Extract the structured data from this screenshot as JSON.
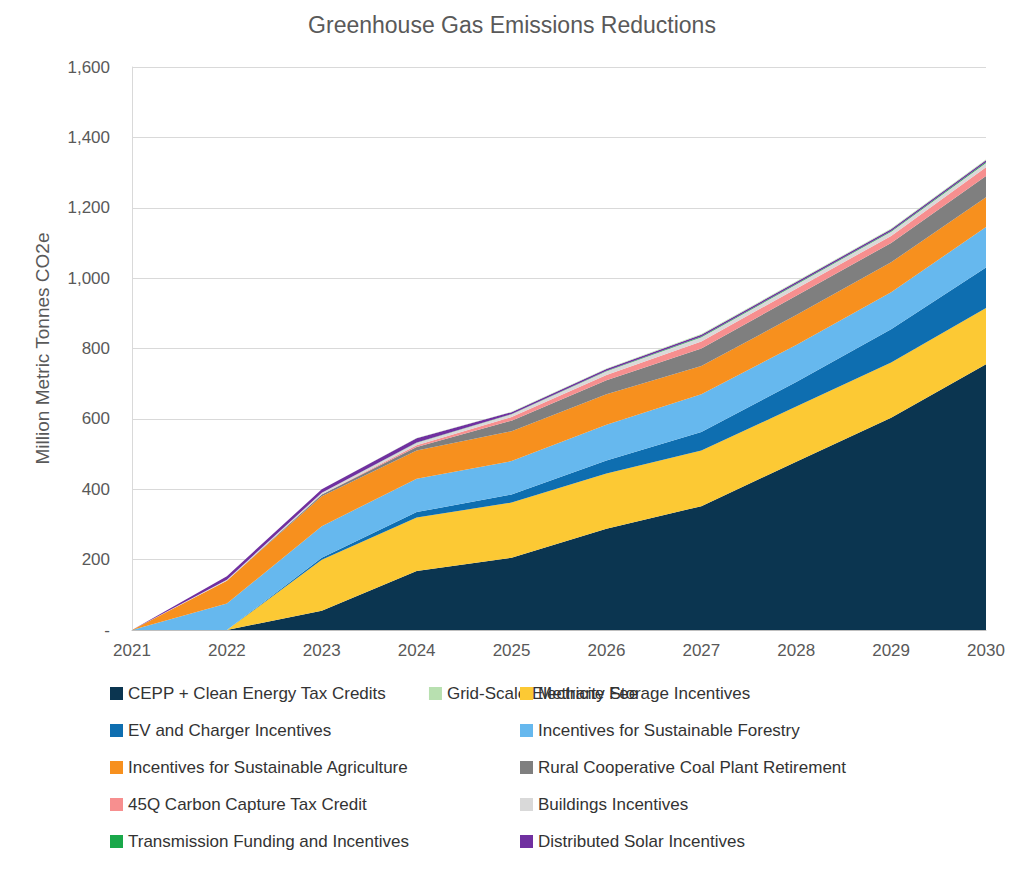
{
  "chart_data": {
    "type": "area",
    "title": "Greenhouse Gas Emissions Reductions",
    "y_label": "Million Metric Tonnes CO2e",
    "categories": [
      "2021",
      "2022",
      "2023",
      "2024",
      "2025",
      "2026",
      "2027",
      "2028",
      "2029",
      "2030"
    ],
    "stacked": true,
    "grid": true,
    "legend": "bottom",
    "ylim": [
      0,
      1600
    ],
    "yticks": [
      {
        "value": 0,
        "label": "-"
      },
      200,
      400,
      600,
      800,
      {
        "value": 1000,
        "label": "1,000"
      },
      {
        "value": 1200,
        "label": "1,200"
      },
      {
        "value": 1400,
        "label": "1,400"
      },
      {
        "value": 1600,
        "label": "1,600"
      }
    ],
    "series": [
      {
        "name": "CEPP + Clean Energy Tax Credits",
        "color": "#0b3550",
        "values": [
          0,
          0,
          55,
          168,
          205,
          288,
          352,
          478,
          603,
          755
        ]
      },
      {
        "name": "Methane Fee",
        "color": "#fcc934",
        "values": [
          0,
          0,
          145,
          152,
          157,
          157,
          158,
          157,
          157,
          160
        ]
      },
      {
        "name": "EV and Charger Incentives",
        "color": "#0e6eb0",
        "values": [
          0,
          0,
          5,
          15,
          23,
          37,
          53,
          70,
          95,
          115
        ]
      },
      {
        "name": "Incentives for Sustainable Forestry",
        "color": "#66b8ee",
        "values": [
          0,
          75,
          90,
          95,
          95,
          101,
          107,
          105,
          105,
          115
        ]
      },
      {
        "name": "Incentives for Sustainable Agriculture",
        "color": "#f7901e",
        "values": [
          0,
          65,
          85,
          80,
          85,
          87,
          80,
          85,
          85,
          85
        ]
      },
      {
        "name": "Rural Cooperative Coal Plant Retirement",
        "color": "#7f7f7f",
        "values": [
          0,
          0,
          5,
          10,
          30,
          40,
          50,
          55,
          55,
          60
        ]
      },
      {
        "name": "45Q Carbon Capture Tax Credit",
        "color": "#f78f8f",
        "values": [
          0,
          0,
          0,
          5,
          10,
          15,
          20,
          20,
          20,
          25
        ]
      },
      {
        "name": "Buildings Incentives",
        "color": "#d9d9d9",
        "values": [
          0,
          3,
          5,
          7,
          8,
          10,
          12,
          12,
          12,
          12
        ]
      },
      {
        "name": "Transmission Funding and Incentives",
        "color": "#1aa84a",
        "values": [
          0,
          0,
          0,
          1,
          1,
          2,
          2,
          2,
          2,
          3
        ]
      },
      {
        "name": "Distributed Solar Incentives",
        "color": "#7030a0",
        "values": [
          0,
          10,
          10,
          12,
          5,
          5,
          5,
          5,
          5,
          5
        ]
      },
      {
        "name": "Grid-Scale Electricity Storage Incentives",
        "color": "#b8e0b0",
        "values": [
          0,
          0,
          0,
          1,
          1,
          1,
          2,
          2,
          2,
          2
        ]
      }
    ]
  }
}
